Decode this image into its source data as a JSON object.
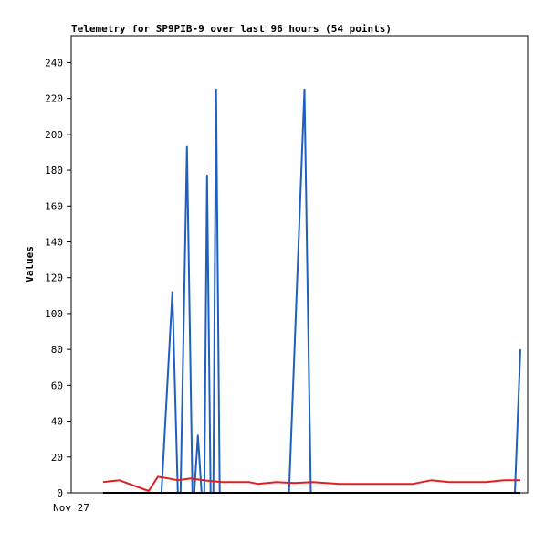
{
  "chart_data": {
    "type": "line",
    "title": "Telemetry for SP9PIB-9 over last 96 hours (54 points)",
    "xlabel": "",
    "ylabel": "Values",
    "x_tick_labels": [
      "Nov 27"
    ],
    "ylim": [
      0,
      255
    ],
    "y_ticks": [
      0,
      20,
      40,
      60,
      80,
      100,
      120,
      140,
      160,
      180,
      200,
      220,
      240
    ],
    "grid": false,
    "legend": "none",
    "colors": {
      "blue_series": "#1f5fbf",
      "red_series": "#e02020",
      "baseline_series": "#000000"
    },
    "series": [
      {
        "color": "#1f5fbf",
        "x": [
          0,
          64,
          76,
          82,
          85,
          92,
          98,
          100,
          104,
          108,
          111,
          114,
          118,
          121,
          124,
          128,
          134,
          204,
          221,
          228,
          452,
          458
        ],
        "values": [
          0,
          0,
          112,
          0,
          0,
          193,
          0,
          0,
          32,
          0,
          0,
          177,
          0,
          0,
          225,
          0,
          0,
          0,
          225,
          0,
          0,
          80
        ]
      },
      {
        "color": "#e02020",
        "x": [
          0,
          8,
          18,
          50,
          60,
          72,
          82,
          96,
          110,
          130,
          160,
          170,
          190,
          210,
          230,
          260,
          300,
          340,
          360,
          380,
          420,
          440,
          458
        ],
        "values": [
          6,
          6.5,
          7,
          1,
          9,
          8,
          7,
          8,
          7,
          6,
          6,
          5,
          6,
          5.5,
          6,
          5,
          5,
          5,
          7,
          6,
          6,
          7,
          7
        ]
      },
      {
        "color": "#000000",
        "x": [
          0,
          458
        ],
        "values": [
          0,
          0
        ]
      }
    ]
  }
}
